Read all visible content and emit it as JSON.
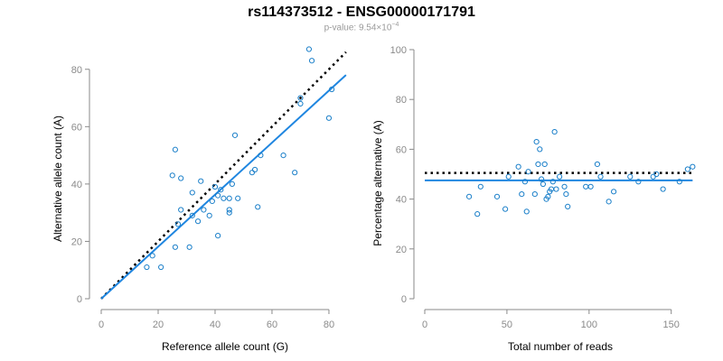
{
  "figure": {
    "title": "rs114373512 - ENSG00000171791",
    "subtitle_prefix": "p-value: 9.54×10",
    "subtitle_exponent": "−4",
    "colors": {
      "points": "#1a7fc9",
      "fit_line": "#1f86e0",
      "reference_line": "#000000",
      "axis": "#8a8a8a"
    }
  },
  "chart_data": [
    {
      "type": "scatter",
      "title": "",
      "xlabel": "Reference allele count (G)",
      "ylabel": "Alternative allele count (A)",
      "xlim": [
        0,
        87
      ],
      "ylim": [
        0,
        90
      ],
      "xticks": [
        0,
        20,
        40,
        60,
        80
      ],
      "yticks": [
        0,
        20,
        40,
        60,
        80
      ],
      "grid": false,
      "points": [
        [
          16,
          11
        ],
        [
          18,
          15
        ],
        [
          21,
          11
        ],
        [
          25,
          43
        ],
        [
          26,
          18
        ],
        [
          26,
          52
        ],
        [
          27,
          26
        ],
        [
          28,
          31
        ],
        [
          28,
          42
        ],
        [
          31,
          18
        ],
        [
          32,
          37
        ],
        [
          32,
          29
        ],
        [
          34,
          27
        ],
        [
          35,
          41
        ],
        [
          36,
          31
        ],
        [
          38,
          29
        ],
        [
          39,
          34
        ],
        [
          40,
          39
        ],
        [
          41,
          22
        ],
        [
          41,
          36
        ],
        [
          42,
          38
        ],
        [
          43,
          35
        ],
        [
          45,
          30
        ],
        [
          45,
          31
        ],
        [
          45,
          35
        ],
        [
          46,
          40
        ],
        [
          47,
          57
        ],
        [
          48,
          35
        ],
        [
          53,
          44
        ],
        [
          54,
          45
        ],
        [
          56,
          50
        ],
        [
          64,
          50
        ],
        [
          68,
          44
        ],
        [
          70,
          68
        ],
        [
          70,
          70
        ],
        [
          73,
          87
        ],
        [
          74,
          83
        ],
        [
          80,
          63
        ],
        [
          81,
          73
        ],
        [
          55,
          32
        ]
      ],
      "fit_line": {
        "x": [
          0,
          86
        ],
        "y": [
          0,
          78
        ]
      },
      "reference_line": {
        "x": [
          0,
          86
        ],
        "y": [
          0,
          86
        ]
      }
    },
    {
      "type": "scatter",
      "title": "",
      "xlabel": "Total number of reads",
      "ylabel": "Percentage alternative (A)",
      "xlim": [
        0,
        165
      ],
      "ylim": [
        0,
        100
      ],
      "xticks": [
        0,
        50,
        100,
        150
      ],
      "yticks": [
        0,
        20,
        40,
        60,
        80,
        100
      ],
      "grid": false,
      "points": [
        [
          27,
          41
        ],
        [
          32,
          34
        ],
        [
          34,
          45
        ],
        [
          44,
          41
        ],
        [
          49,
          36
        ],
        [
          51,
          49
        ],
        [
          57,
          53
        ],
        [
          59,
          42
        ],
        [
          61,
          47
        ],
        [
          62,
          35
        ],
        [
          63,
          51
        ],
        [
          67,
          42
        ],
        [
          68,
          63
        ],
        [
          69,
          54
        ],
        [
          70,
          60
        ],
        [
          71,
          48
        ],
        [
          72,
          46
        ],
        [
          73,
          54
        ],
        [
          74,
          40
        ],
        [
          75,
          41
        ],
        [
          76,
          43
        ],
        [
          77,
          44
        ],
        [
          78,
          47
        ],
        [
          79,
          67
        ],
        [
          80,
          44
        ],
        [
          82,
          49
        ],
        [
          85,
          45
        ],
        [
          86,
          42
        ],
        [
          87,
          37
        ],
        [
          98,
          45
        ],
        [
          101,
          45
        ],
        [
          105,
          54
        ],
        [
          107,
          49
        ],
        [
          112,
          39
        ],
        [
          115,
          43
        ],
        [
          125,
          49
        ],
        [
          130,
          47
        ],
        [
          139,
          49
        ],
        [
          141,
          50
        ],
        [
          145,
          44
        ],
        [
          155,
          47
        ],
        [
          160,
          52
        ],
        [
          163,
          53
        ]
      ],
      "fit_line": {
        "x": [
          0,
          163
        ],
        "y": [
          47.5,
          47.5
        ]
      },
      "reference_line": {
        "x": [
          0,
          163
        ],
        "y": [
          50.5,
          50.5
        ]
      }
    }
  ]
}
